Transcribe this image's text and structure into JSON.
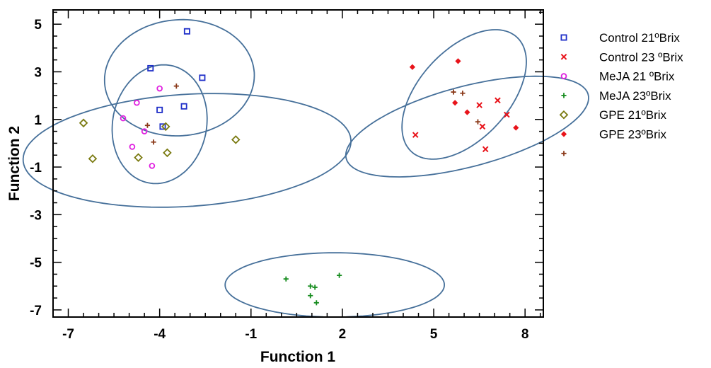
{
  "chart_data": {
    "type": "scatter",
    "title": "",
    "xlabel": "Function 1",
    "ylabel": "Function 2",
    "xlim": [
      -7.5,
      8.6
    ],
    "ylim": [
      -7.3,
      5.6
    ],
    "xticks": [
      -7,
      -4,
      -1,
      2,
      5,
      8
    ],
    "xtick_labels": [
      "-7",
      "-4",
      "-1",
      "2",
      "5",
      "8"
    ],
    "yticks": [
      5,
      3,
      1,
      -1,
      -3,
      -5,
      -7
    ],
    "ytick_labels": [
      "5",
      "3",
      "1",
      "-1",
      "-3",
      "-5",
      "-7"
    ],
    "grid": false,
    "legend_position": "right",
    "series": [
      {
        "name": "Control 21ºBrix",
        "marker": "square",
        "color": "#1f2fc8",
        "points": [
          [
            -3.1,
            4.7
          ],
          [
            -4.3,
            3.15
          ],
          [
            -2.6,
            2.75
          ],
          [
            -4.0,
            1.4
          ],
          [
            -3.2,
            1.55
          ],
          [
            -3.9,
            0.7
          ]
        ]
      },
      {
        "name": "Control 23 ºBrix",
        "marker": "x",
        "color": "#e8141b",
        "points": [
          [
            4.4,
            0.35
          ],
          [
            6.5,
            1.6
          ],
          [
            7.1,
            1.8
          ],
          [
            7.4,
            1.2
          ],
          [
            6.6,
            0.7
          ],
          [
            6.7,
            -0.25
          ]
        ]
      },
      {
        "name": "MeJA 21 ºBrix",
        "marker": "circle",
        "color": "#e020e0",
        "points": [
          [
            -4.75,
            1.7
          ],
          [
            -5.2,
            1.05
          ],
          [
            -4.5,
            0.5
          ],
          [
            -4.9,
            -0.15
          ],
          [
            -4.25,
            -0.95
          ],
          [
            -4.0,
            2.3
          ]
        ]
      },
      {
        "name": "MeJA 23ºBrix",
        "marker": "plus",
        "color": "#168c1e",
        "points": [
          [
            0.15,
            -5.7
          ],
          [
            1.9,
            -5.55
          ],
          [
            0.95,
            -6.0
          ],
          [
            1.1,
            -6.05
          ],
          [
            0.95,
            -6.4
          ],
          [
            1.15,
            -6.7
          ]
        ]
      },
      {
        "name": "GPE 21ºBrix",
        "marker": "diamond",
        "color": "#7a7a10",
        "points": [
          [
            -6.5,
            0.85
          ],
          [
            -6.2,
            -0.65
          ],
          [
            -4.7,
            -0.6
          ],
          [
            -3.8,
            0.7
          ],
          [
            -3.75,
            -0.4
          ],
          [
            -1.5,
            0.15
          ]
        ]
      },
      {
        "name": "GPE 23ºBrix",
        "marker": "diamond-small",
        "color": "#e8141b",
        "points": [
          [
            4.3,
            3.2
          ],
          [
            5.8,
            3.45
          ],
          [
            5.7,
            1.7
          ],
          [
            6.1,
            1.3
          ],
          [
            7.7,
            0.65
          ]
        ]
      },
      {
        "name": "",
        "marker": "plus",
        "color": "#8b3a1a",
        "points": [
          [
            -4.4,
            0.75
          ],
          [
            -3.45,
            2.4
          ],
          [
            -4.2,
            0.05
          ],
          [
            5.65,
            2.15
          ],
          [
            6.45,
            0.9
          ],
          [
            5.95,
            2.1
          ]
        ]
      }
    ],
    "ellipses": [
      {
        "center": [
          -3.35,
          2.75
        ],
        "semi_axes": [
          2.5,
          2.4
        ],
        "angle_deg": 40
      },
      {
        "center": [
          -4.0,
          0.8
        ],
        "semi_axes": [
          2.5,
          1.55
        ],
        "angle_deg": 85
      },
      {
        "center": [
          -3.1,
          -0.3
        ],
        "semi_axes": [
          2.35,
          5.4
        ],
        "angle_deg": -85
      },
      {
        "center": [
          6.0,
          2.05
        ],
        "semi_axes": [
          3.0,
          1.6
        ],
        "angle_deg": 60
      },
      {
        "center": [
          6.1,
          0.7
        ],
        "semi_axes": [
          4.2,
          1.65
        ],
        "angle_deg": 20
      },
      {
        "center": [
          1.75,
          -5.95
        ],
        "semi_axes": [
          3.6,
          1.35
        ],
        "angle_deg": 0
      }
    ]
  }
}
